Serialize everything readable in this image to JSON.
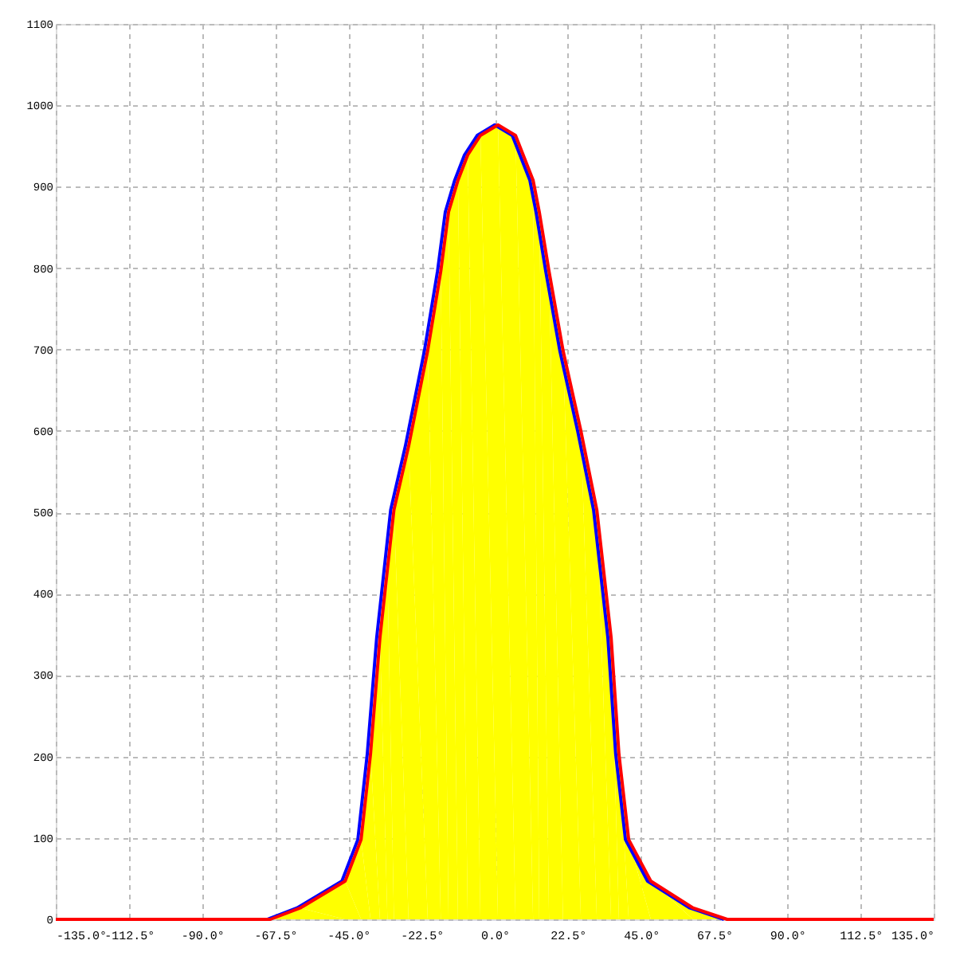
{
  "chart_data": {
    "type": "line",
    "xlim": [
      -135,
      135
    ],
    "ylim": [
      0,
      1100
    ],
    "xticks": [
      {
        "value": -135,
        "label": "-135.0°"
      },
      {
        "value": -112.5,
        "label": "-112.5°"
      },
      {
        "value": -90,
        "label": "-90.0°"
      },
      {
        "value": -67.5,
        "label": "-67.5°"
      },
      {
        "value": -45,
        "label": "-45.0°"
      },
      {
        "value": -22.5,
        "label": "-22.5°"
      },
      {
        "value": 0,
        "label": "0.0°"
      },
      {
        "value": 22.5,
        "label": "22.5°"
      },
      {
        "value": 45,
        "label": "45.0°"
      },
      {
        "value": 67.5,
        "label": "67.5°"
      },
      {
        "value": 90,
        "label": "90.0°"
      },
      {
        "value": 112.5,
        "label": "112.5°"
      },
      {
        "value": 135,
        "label": "135.0°"
      }
    ],
    "yticks": [
      0,
      100,
      200,
      300,
      400,
      500,
      600,
      700,
      800,
      900,
      1000,
      1100
    ],
    "grid": true,
    "line_style": "solid",
    "series": [
      {
        "type": "area",
        "color": "#ffff00",
        "x": [
          -69,
          -59.8,
          -46,
          -41.1,
          -38.2,
          -35.3,
          -33,
          -31,
          -26.5,
          -20.6,
          -16.6,
          -14.2,
          -11.3,
          -8.3,
          -4.4,
          1,
          6.4,
          11.8,
          13.7,
          16.7,
          21,
          26.5,
          31.4,
          35.8,
          38.2,
          41.2,
          48,
          61,
          71.5
        ],
        "values": [
          0,
          14,
          47,
          98,
          203,
          346,
          430,
          503,
          581,
          699,
          796,
          869,
          908,
          939,
          963,
          976,
          963,
          908,
          869,
          796,
          699,
          600,
          503,
          346,
          203,
          98,
          47,
          14,
          0
        ]
      },
      {
        "color": "#0000ff",
        "x": [
          -70,
          -60.8,
          -47,
          -42.1,
          -39.2,
          -36.3,
          -34,
          -32,
          -27.5,
          -21.6,
          -17.6,
          -15.2,
          -12.3,
          -9.3,
          -5.4,
          0,
          5.4,
          10.8,
          12.7,
          15.7,
          20,
          25.5,
          30.4,
          34.8,
          37.2,
          40.2,
          47,
          60,
          70.5
        ],
        "values": [
          0,
          14,
          47,
          98,
          203,
          346,
          430,
          503,
          581,
          699,
          796,
          869,
          908,
          939,
          963,
          976,
          963,
          908,
          869,
          796,
          699,
          600,
          503,
          346,
          203,
          98,
          47,
          14,
          0
        ]
      },
      {
        "color": "#ff0000",
        "x": [
          -135,
          -69,
          -59.8,
          -46,
          -41.1,
          -38.2,
          -35.3,
          -33,
          -31,
          -26.5,
          -20.6,
          -16.6,
          -14.2,
          -11.3,
          -8.3,
          -4.4,
          1,
          6.4,
          11.8,
          13.7,
          16.7,
          21,
          26.5,
          31.4,
          35.8,
          38.2,
          41.2,
          48,
          61,
          71.5,
          135
        ],
        "values": [
          0,
          0,
          14,
          47,
          98,
          203,
          346,
          430,
          503,
          581,
          699,
          796,
          869,
          908,
          939,
          963,
          976,
          963,
          908,
          869,
          796,
          699,
          600,
          503,
          346,
          203,
          98,
          47,
          14,
          0,
          0
        ]
      }
    ]
  }
}
